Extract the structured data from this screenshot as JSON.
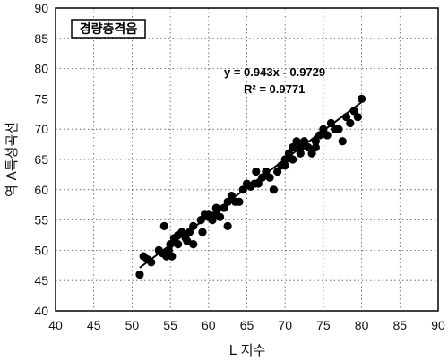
{
  "chart_data": {
    "type": "scatter",
    "title": "",
    "xlabel": "L 지수",
    "ylabel": "역 A특성곡선",
    "xlim": [
      40,
      90
    ],
    "ylim": [
      40,
      90
    ],
    "x_ticks": [
      "40",
      "45",
      "50",
      "55",
      "60",
      "65",
      "70",
      "75",
      "80",
      "85",
      "90"
    ],
    "y_ticks": [
      "40",
      "45",
      "50",
      "55",
      "60",
      "65",
      "70",
      "75",
      "80",
      "85",
      "90"
    ],
    "grid": true,
    "legend": {
      "label": "경량충격음",
      "placement": "top-left"
    },
    "annotation": {
      "equation": "y = 0.943x - 0.9729",
      "r_squared": "R² = 0.9771"
    },
    "trendline": {
      "slope": 0.943,
      "intercept": -0.9729,
      "x_range": [
        51,
        80
      ]
    },
    "series": [
      {
        "points": [
          [
            51,
            46
          ],
          [
            51.5,
            49
          ],
          [
            52,
            48.5
          ],
          [
            52.5,
            48
          ],
          [
            53.5,
            50
          ],
          [
            54,
            49.5
          ],
          [
            54.2,
            54
          ],
          [
            54.5,
            49
          ],
          [
            54.8,
            50
          ],
          [
            55,
            51
          ],
          [
            55.2,
            49
          ],
          [
            55.5,
            52
          ],
          [
            56,
            52.5
          ],
          [
            56,
            51
          ],
          [
            56.5,
            53
          ],
          [
            57,
            52
          ],
          [
            57.2,
            51.5
          ],
          [
            57.5,
            53
          ],
          [
            58,
            54
          ],
          [
            58,
            51
          ],
          [
            59,
            55
          ],
          [
            59.2,
            53
          ],
          [
            59.5,
            56
          ],
          [
            60,
            55.5
          ],
          [
            60,
            56
          ],
          [
            60.5,
            55
          ],
          [
            61,
            56
          ],
          [
            61,
            57
          ],
          [
            61.5,
            55.5
          ],
          [
            62,
            57
          ],
          [
            62.5,
            54
          ],
          [
            62.5,
            58
          ],
          [
            63,
            59
          ],
          [
            63.5,
            58
          ],
          [
            64,
            58
          ],
          [
            64.5,
            60
          ],
          [
            65,
            61
          ],
          [
            65.5,
            60.5
          ],
          [
            66,
            61
          ],
          [
            66.2,
            63
          ],
          [
            66.5,
            61
          ],
          [
            67,
            62
          ],
          [
            67.5,
            63
          ],
          [
            68,
            62
          ],
          [
            68.5,
            60
          ],
          [
            69,
            63
          ],
          [
            69.5,
            64
          ],
          [
            70,
            65
          ],
          [
            70,
            64
          ],
          [
            70.5,
            66
          ],
          [
            71,
            65
          ],
          [
            71,
            67
          ],
          [
            71.5,
            68
          ],
          [
            72,
            66
          ],
          [
            72,
            67
          ],
          [
            72.5,
            68
          ],
          [
            73,
            67
          ],
          [
            73.5,
            66
          ],
          [
            74,
            67
          ],
          [
            74,
            68
          ],
          [
            74.5,
            69
          ],
          [
            75,
            70
          ],
          [
            75.5,
            69
          ],
          [
            76,
            71
          ],
          [
            76.5,
            70
          ],
          [
            77,
            70
          ],
          [
            77.5,
            68
          ],
          [
            78,
            72
          ],
          [
            78.5,
            71
          ],
          [
            79,
            73
          ],
          [
            79.5,
            72
          ],
          [
            80,
            75
          ]
        ]
      }
    ]
  }
}
